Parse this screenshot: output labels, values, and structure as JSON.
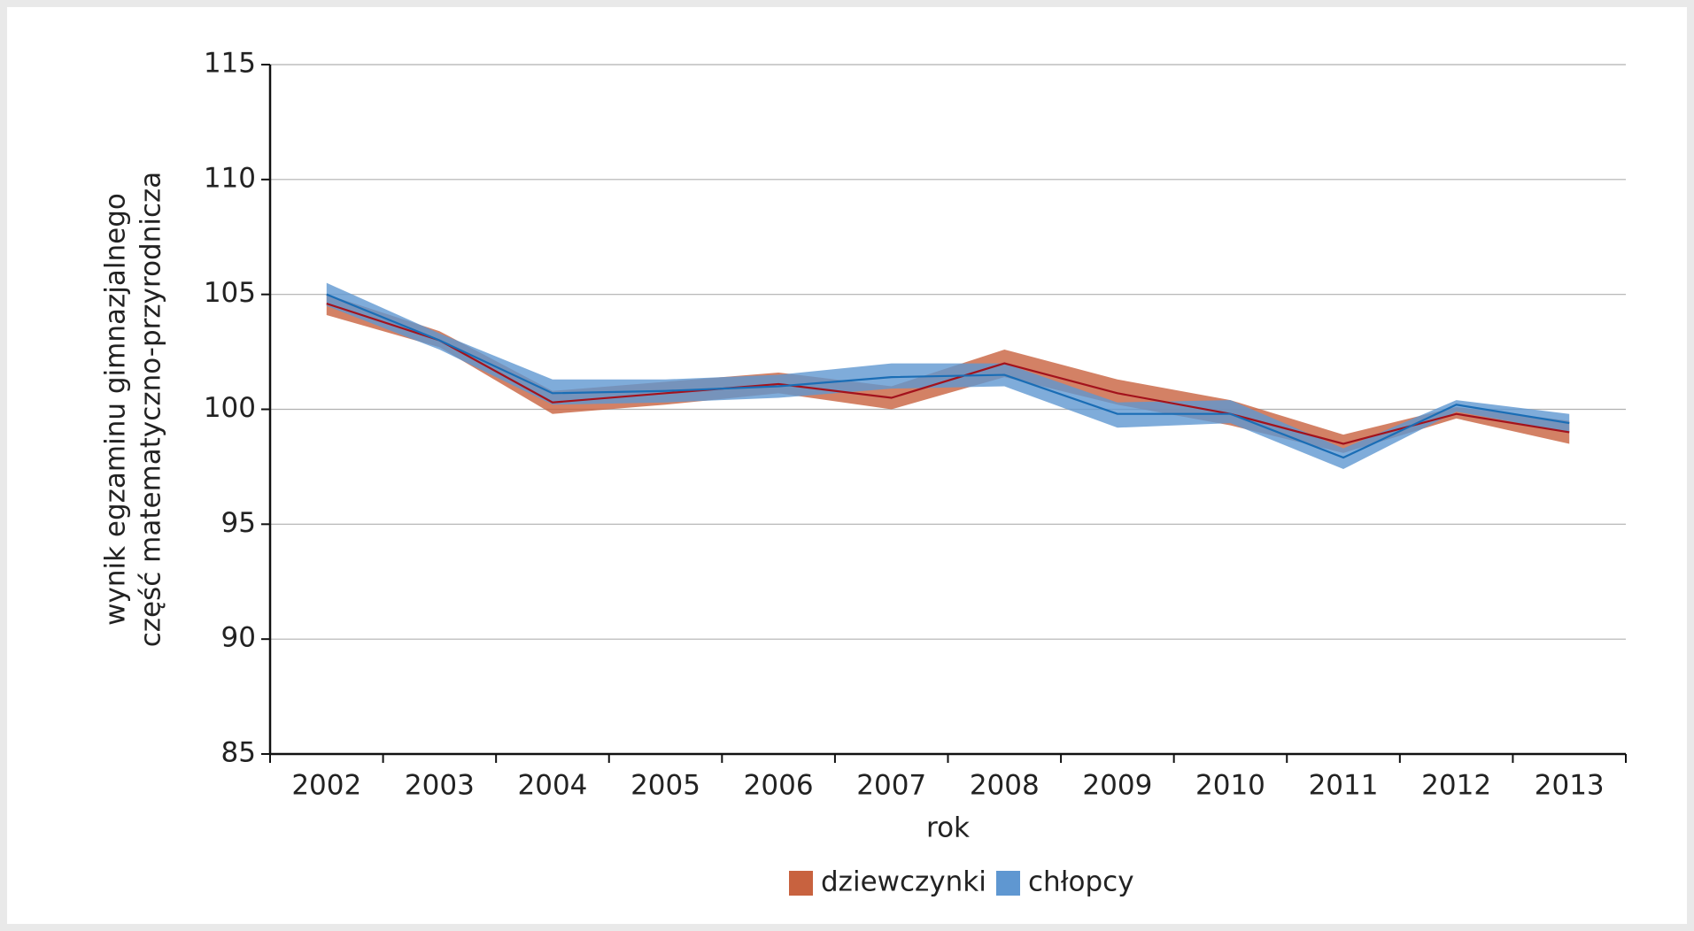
{
  "chart_data": {
    "type": "line",
    "categories": [
      "2002",
      "2003",
      "2004",
      "2005",
      "2006",
      "2007",
      "2008",
      "2009",
      "2010",
      "2011",
      "2012",
      "2013"
    ],
    "xlabel": "rok",
    "ylabel": [
      "wynik egzaminu gimnazjalnego",
      "część matematyczno-przyrodnicza"
    ],
    "ylim": [
      85,
      115
    ],
    "yticks": [
      85,
      90,
      95,
      100,
      105,
      110,
      115
    ],
    "grid": true,
    "legend": "bottom",
    "series": [
      {
        "name": "dziewczynki",
        "color": "#c8623f",
        "line_color": "#a3121c",
        "values": [
          104.6,
          103.0,
          100.3,
          100.7,
          101.1,
          100.5,
          102.0,
          100.7,
          99.8,
          98.5,
          99.8,
          99.0
        ],
        "lower": [
          104.1,
          102.7,
          99.8,
          100.2,
          100.7,
          100.0,
          101.4,
          100.2,
          99.3,
          98.1,
          99.6,
          98.5
        ],
        "upper": [
          105.0,
          103.4,
          100.8,
          101.2,
          101.6,
          101.0,
          102.6,
          101.3,
          100.4,
          98.9,
          100.1,
          99.5
        ]
      },
      {
        "name": "chłopcy",
        "color": "#5f97d1",
        "line_color": "#1a6db5",
        "values": [
          105.0,
          103.0,
          100.7,
          100.8,
          101.0,
          101.4,
          101.5,
          99.8,
          99.8,
          97.9,
          100.2,
          99.4
        ],
        "lower": [
          104.5,
          102.6,
          100.2,
          100.3,
          100.5,
          100.9,
          101.0,
          99.2,
          99.4,
          97.4,
          99.9,
          99.0
        ],
        "upper": [
          105.5,
          103.3,
          101.3,
          101.3,
          101.5,
          102.0,
          102.0,
          100.3,
          100.4,
          98.3,
          100.4,
          99.8
        ]
      }
    ]
  }
}
